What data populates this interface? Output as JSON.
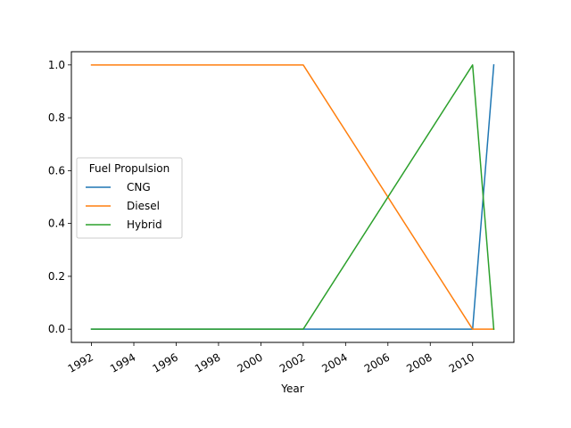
{
  "chart_data": {
    "type": "line",
    "title": "",
    "xlabel": "Year",
    "ylabel": "",
    "x": [
      1992,
      2002,
      2010,
      2011
    ],
    "series": [
      {
        "name": "CNG",
        "color": "#1f77b4",
        "values": [
          0,
          0,
          0,
          1
        ]
      },
      {
        "name": "Diesel",
        "color": "#ff7f0e",
        "values": [
          1,
          1,
          0,
          0
        ]
      },
      {
        "name": "Hybrid",
        "color": "#2ca02c",
        "values": [
          0,
          0,
          1,
          0
        ]
      }
    ],
    "xlim": [
      1991.05,
      2011.95
    ],
    "ylim": [
      -0.05,
      1.05
    ],
    "xticks": [
      "1992",
      "1994",
      "1996",
      "1998",
      "2000",
      "2002",
      "2004",
      "2006",
      "2008",
      "2010"
    ],
    "yticks": [
      "0.0",
      "0.2",
      "0.4",
      "0.6",
      "0.8",
      "1.0"
    ],
    "legend": {
      "title": "Fuel Propulsion",
      "placement": "center-left"
    },
    "grid": false
  }
}
